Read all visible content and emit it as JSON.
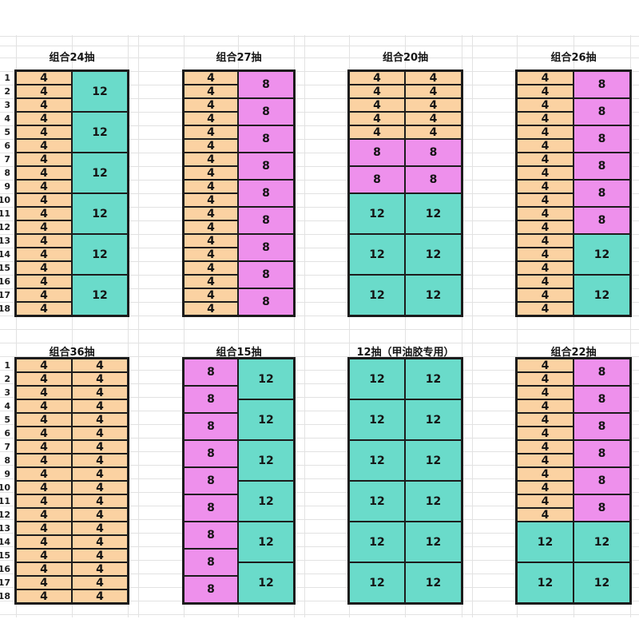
{
  "meta": {
    "background": "#ffffff",
    "gridline_color": "#e2e2e2",
    "cell_border_color": "#1c1c1c",
    "text_color": "#141414"
  },
  "palette": {
    "orange": "#fbd2a2",
    "teal": "#6adbca",
    "pink": "#ee90ec"
  },
  "row_labels": [
    "1",
    "2",
    "3",
    "4",
    "5",
    "6",
    "7",
    "8",
    "9",
    "10",
    "11",
    "12",
    "13",
    "14",
    "15",
    "16",
    "17",
    "18"
  ],
  "sections": [
    {
      "name": "top",
      "tables": [
        {
          "title": "组合24抽",
          "columns": [
            [
              {
                "value": "4",
                "color": "orange",
                "span": 1,
                "repeat": 18
              }
            ],
            [
              {
                "value": "12",
                "color": "teal",
                "span": 3,
                "repeat": 6
              }
            ]
          ]
        },
        {
          "title": "组合27抽",
          "columns": [
            [
              {
                "value": "4",
                "color": "orange",
                "span": 1,
                "repeat": 18
              }
            ],
            [
              {
                "value": "8",
                "color": "pink",
                "span": 2,
                "repeat": 9
              }
            ]
          ]
        },
        {
          "title": "组合20抽",
          "columns": [
            [
              {
                "value": "4",
                "color": "orange",
                "span": 1,
                "repeat": 5
              },
              {
                "value": "8",
                "color": "pink",
                "span": 2,
                "repeat": 2
              },
              {
                "value": "12",
                "color": "teal",
                "span": 3,
                "repeat": 3
              }
            ],
            [
              {
                "value": "4",
                "color": "orange",
                "span": 1,
                "repeat": 5
              },
              {
                "value": "8",
                "color": "pink",
                "span": 2,
                "repeat": 2
              },
              {
                "value": "12",
                "color": "teal",
                "span": 3,
                "repeat": 3
              }
            ]
          ]
        },
        {
          "title": "组合26抽",
          "columns": [
            [
              {
                "value": "4",
                "color": "orange",
                "span": 1,
                "repeat": 18
              }
            ],
            [
              {
                "value": "8",
                "color": "pink",
                "span": 2,
                "repeat": 6
              },
              {
                "value": "12",
                "color": "teal",
                "span": 3,
                "repeat": 2
              }
            ]
          ]
        }
      ]
    },
    {
      "name": "bottom",
      "tables": [
        {
          "title": "组合36抽",
          "columns": [
            [
              {
                "value": "4",
                "color": "orange",
                "span": 1,
                "repeat": 18
              }
            ],
            [
              {
                "value": "4",
                "color": "orange",
                "span": 1,
                "repeat": 18
              }
            ]
          ]
        },
        {
          "title": "组合15抽",
          "columns": [
            [
              {
                "value": "8",
                "color": "pink",
                "span": 2,
                "repeat": 9
              }
            ],
            [
              {
                "value": "12",
                "color": "teal",
                "span": 3,
                "repeat": 6
              }
            ]
          ]
        },
        {
          "title": "12抽（甲油胶专用）",
          "columns": [
            [
              {
                "value": "12",
                "color": "teal",
                "span": 3,
                "repeat": 6
              }
            ],
            [
              {
                "value": "12",
                "color": "teal",
                "span": 3,
                "repeat": 6
              }
            ]
          ]
        },
        {
          "title": "组合22抽",
          "columns": [
            [
              {
                "value": "4",
                "color": "orange",
                "span": 1,
                "repeat": 12
              },
              {
                "value": "12",
                "color": "teal",
                "span": 3,
                "repeat": 2
              }
            ],
            [
              {
                "value": "8",
                "color": "pink",
                "span": 2,
                "repeat": 6
              },
              {
                "value": "12",
                "color": "teal",
                "span": 3,
                "repeat": 2
              }
            ]
          ]
        }
      ]
    }
  ]
}
